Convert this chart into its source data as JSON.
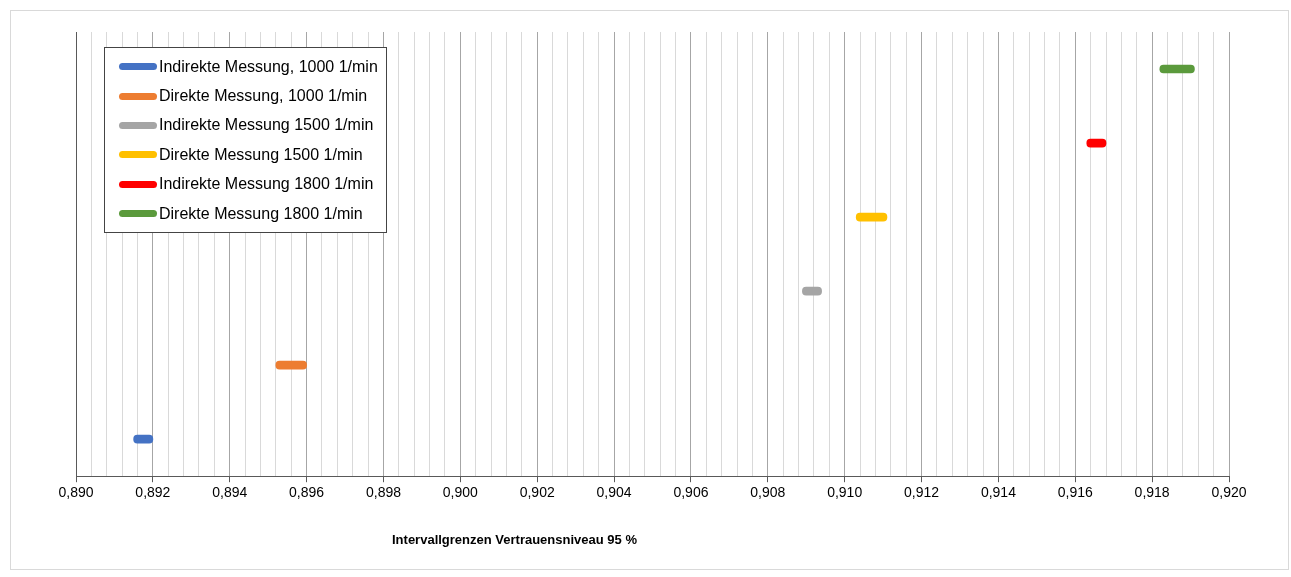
{
  "chart_data": {
    "type": "bar",
    "orientation": "horizontal",
    "xlabel": "Intervallgrenzen Vertrauensniveau 95 %",
    "categories": [
      null,
      null,
      null,
      null,
      null,
      null
    ],
    "series": [
      {
        "name": "Indirekte Messung, 1000 1/min",
        "color": "#4472c4",
        "values": [
          null,
          null,
          null,
          null,
          null,
          0.0005
        ],
        "base": [
          null,
          null,
          null,
          null,
          null,
          0.8915
        ]
      },
      {
        "name": "Direkte Messung, 1000 1/min",
        "color": "#ed7d31",
        "values": [
          null,
          null,
          null,
          null,
          0.0008,
          null
        ],
        "base": [
          null,
          null,
          null,
          null,
          0.8952,
          null
        ]
      },
      {
        "name": "Indirekte Messung 1500 1/min",
        "color": "#a5a5a5",
        "values": [
          null,
          null,
          null,
          0.0005,
          null,
          null
        ],
        "base": [
          null,
          null,
          null,
          0.9089,
          null,
          null
        ]
      },
      {
        "name": "Direkte Messung 1500 1/min",
        "color": "#ffc000",
        "values": [
          null,
          null,
          0.0008,
          null,
          null,
          null
        ],
        "base": [
          null,
          null,
          0.9103,
          null,
          null,
          null
        ]
      },
      {
        "name": "Indirekte Messung 1800 1/min",
        "color": "#ff0000",
        "values": [
          null,
          0.0005,
          null,
          null,
          null,
          null
        ],
        "base": [
          null,
          0.9163,
          null,
          null,
          null,
          null
        ]
      },
      {
        "name": "Direkte Messung 1800 1/min",
        "color": "#5b9a3c",
        "values": [
          0.0009,
          null,
          null,
          null,
          null,
          null
        ],
        "base": [
          0.9182,
          null,
          null,
          null,
          null,
          null
        ]
      }
    ],
    "xlim": [
      0.89,
      0.92
    ],
    "xticks": [
      {
        "value": 0.89,
        "label": "0,890"
      },
      {
        "value": 0.8904,
        "label": null
      },
      {
        "value": 0.8908,
        "label": null
      },
      {
        "value": 0.8912,
        "label": null
      },
      {
        "value": 0.8916,
        "label": null
      },
      {
        "value": 0.892,
        "label": "0,892"
      },
      {
        "value": 0.8924,
        "label": null
      },
      {
        "value": 0.8928,
        "label": null
      },
      {
        "value": 0.8932,
        "label": null
      },
      {
        "value": 0.8936,
        "label": null
      },
      {
        "value": 0.894,
        "label": "0,894"
      },
      {
        "value": 0.8944,
        "label": null
      },
      {
        "value": 0.8948,
        "label": null
      },
      {
        "value": 0.8952,
        "label": null
      },
      {
        "value": 0.8956,
        "label": null
      },
      {
        "value": 0.896,
        "label": "0,896"
      },
      {
        "value": 0.8964,
        "label": null
      },
      {
        "value": 0.8968,
        "label": null
      },
      {
        "value": 0.8972,
        "label": null
      },
      {
        "value": 0.8976,
        "label": null
      },
      {
        "value": 0.898,
        "label": "0,898"
      },
      {
        "value": 0.8984,
        "label": null
      },
      {
        "value": 0.8988,
        "label": null
      },
      {
        "value": 0.8992,
        "label": null
      },
      {
        "value": 0.8996,
        "label": null
      },
      {
        "value": 0.9,
        "label": "0,900"
      },
      {
        "value": 0.9004,
        "label": null
      },
      {
        "value": 0.9008,
        "label": null
      },
      {
        "value": 0.9012,
        "label": null
      },
      {
        "value": 0.9016,
        "label": null
      },
      {
        "value": 0.902,
        "label": "0,902"
      },
      {
        "value": 0.9024,
        "label": null
      },
      {
        "value": 0.9028,
        "label": null
      },
      {
        "value": 0.9032,
        "label": null
      },
      {
        "value": 0.9036,
        "label": null
      },
      {
        "value": 0.904,
        "label": "0,904"
      },
      {
        "value": 0.9044,
        "label": null
      },
      {
        "value": 0.9048,
        "label": null
      },
      {
        "value": 0.9052,
        "label": null
      },
      {
        "value": 0.9056,
        "label": null
      },
      {
        "value": 0.906,
        "label": "0,906"
      },
      {
        "value": 0.9064,
        "label": null
      },
      {
        "value": 0.9068,
        "label": null
      },
      {
        "value": 0.9072,
        "label": null
      },
      {
        "value": 0.9076,
        "label": null
      },
      {
        "value": 0.908,
        "label": "0,908"
      },
      {
        "value": 0.9084,
        "label": null
      },
      {
        "value": 0.9088,
        "label": null
      },
      {
        "value": 0.9092,
        "label": null
      },
      {
        "value": 0.9096,
        "label": null
      },
      {
        "value": 0.91,
        "label": "0,910"
      },
      {
        "value": 0.9104,
        "label": null
      },
      {
        "value": 0.9108,
        "label": null
      },
      {
        "value": 0.9112,
        "label": null
      },
      {
        "value": 0.9116,
        "label": null
      },
      {
        "value": 0.912,
        "label": "0,912"
      },
      {
        "value": 0.9124,
        "label": null
      },
      {
        "value": 0.9128,
        "label": null
      },
      {
        "value": 0.9132,
        "label": null
      },
      {
        "value": 0.9136,
        "label": null
      },
      {
        "value": 0.914,
        "label": "0,914"
      },
      {
        "value": 0.9144,
        "label": null
      },
      {
        "value": 0.9148,
        "label": null
      },
      {
        "value": 0.9152,
        "label": null
      },
      {
        "value": 0.9156,
        "label": null
      },
      {
        "value": 0.916,
        "label": "0,916"
      },
      {
        "value": 0.9164,
        "label": null
      },
      {
        "value": 0.9168,
        "label": null
      },
      {
        "value": 0.9172,
        "label": null
      },
      {
        "value": 0.9176,
        "label": null
      },
      {
        "value": 0.918,
        "label": "0,918"
      },
      {
        "value": 0.9184,
        "label": null
      },
      {
        "value": 0.9188,
        "label": null
      },
      {
        "value": 0.9192,
        "label": null
      },
      {
        "value": 0.9196,
        "label": null
      },
      {
        "value": 0.92,
        "label": "0,920"
      }
    ],
    "grid": "x",
    "legend": "top left",
    "tick_labels": "x"
  }
}
